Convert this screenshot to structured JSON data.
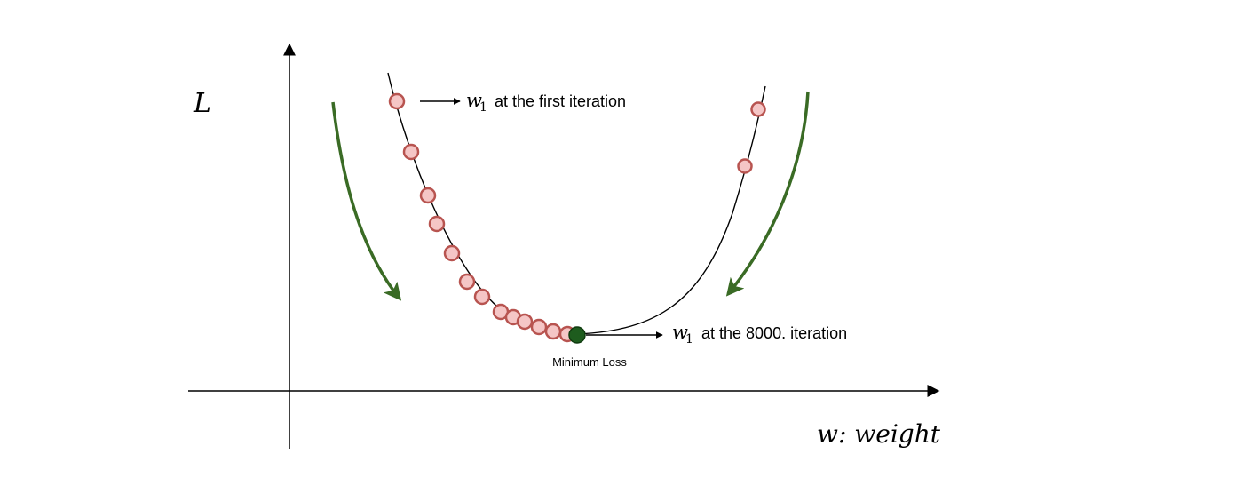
{
  "axes": {
    "y_label": "L",
    "x_label": "w: weight"
  },
  "annotations": {
    "first": {
      "var": "w",
      "sub": "1",
      "text": "at the first iteration"
    },
    "last": {
      "var": "w",
      "sub": "1",
      "text": "at the 8000. iteration"
    },
    "minimum": "Minimum Loss"
  },
  "colors": {
    "point_fill": "#f5c6c6",
    "point_stroke": "#b85450",
    "minimum_point": "#1e5c1e",
    "arrow_green": "#3a6b25",
    "line": "#000000"
  }
}
